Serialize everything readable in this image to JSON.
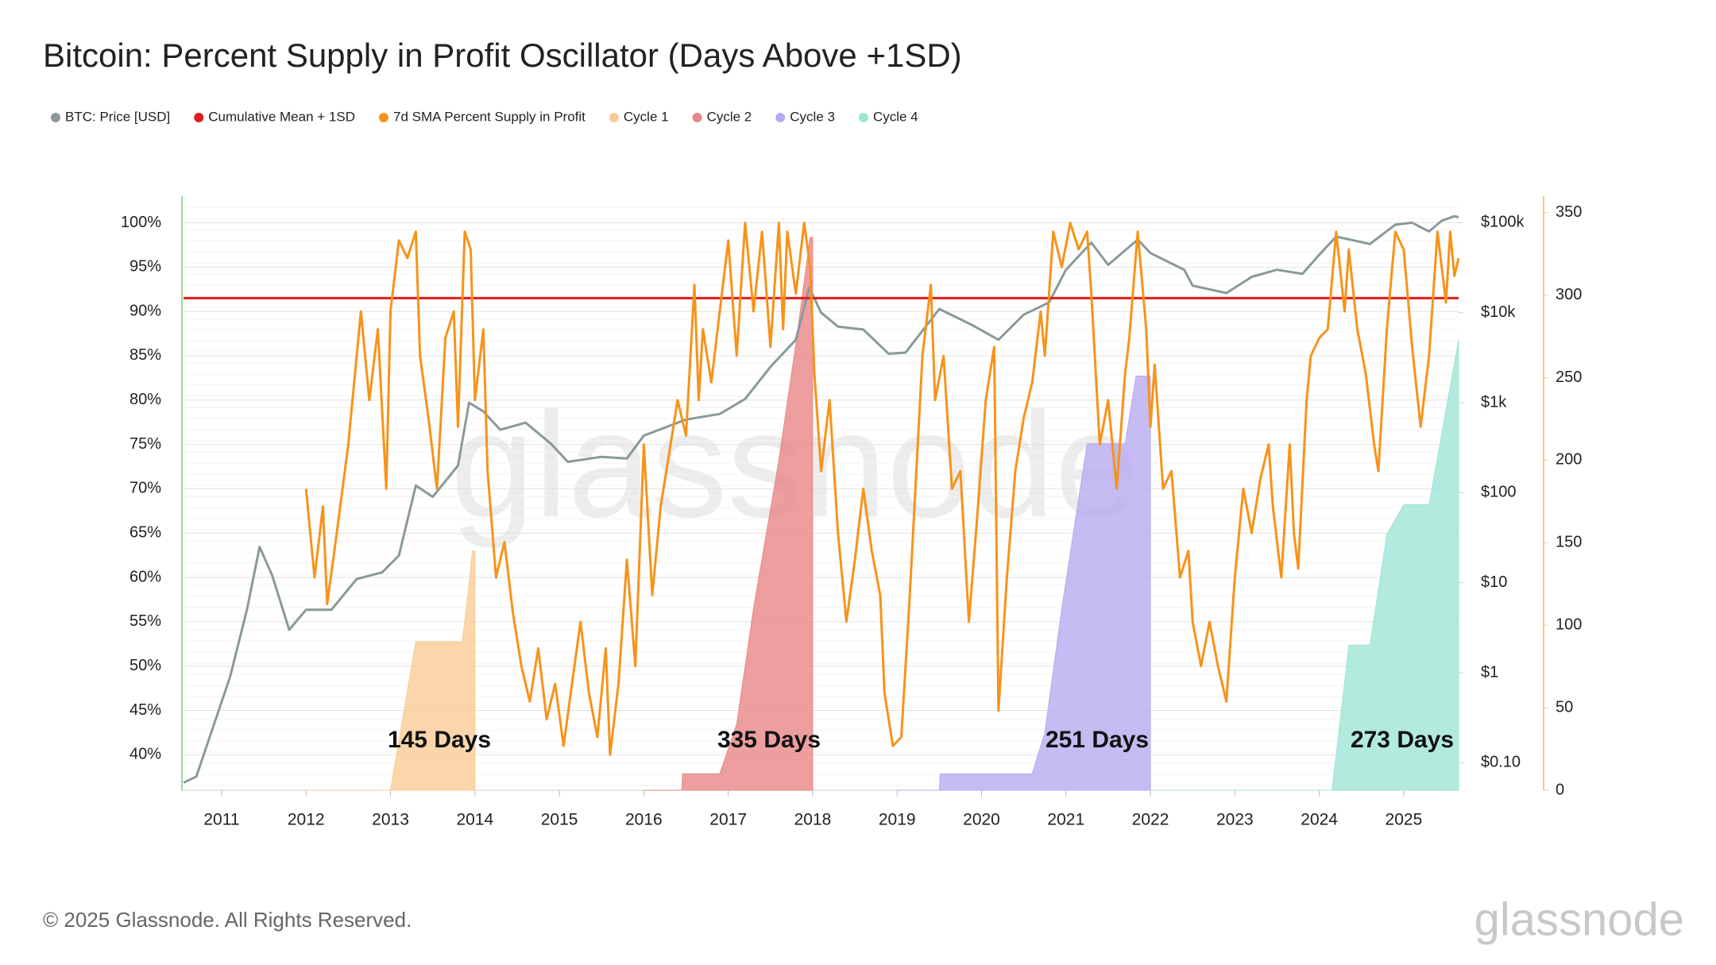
{
  "chart_data": {
    "type": "line",
    "title": "Bitcoin: Percent Supply in Profit Oscillator (Days Above +1SD)",
    "xlim": [
      2010.53,
      2025.65
    ],
    "xticks": [
      2011,
      2012,
      2013,
      2014,
      2015,
      2016,
      2017,
      2018,
      2019,
      2020,
      2021,
      2022,
      2023,
      2024,
      2025
    ],
    "ylim": [
      36,
      103
    ],
    "yticks": [
      {
        "value": 40,
        "label": "40%"
      },
      {
        "value": 45,
        "label": "45%"
      },
      {
        "value": 50,
        "label": "50%"
      },
      {
        "value": 55,
        "label": "55%"
      },
      {
        "value": 60,
        "label": "60%"
      },
      {
        "value": 65,
        "label": "65%"
      },
      {
        "value": 70,
        "label": "70%"
      },
      {
        "value": 75,
        "label": "75%"
      },
      {
        "value": 80,
        "label": "80%"
      },
      {
        "value": 85,
        "label": "85%"
      },
      {
        "value": 90,
        "label": "90%"
      },
      {
        "value": 95,
        "label": "95%"
      },
      {
        "value": 100,
        "label": "100%"
      }
    ],
    "y2lim": [
      0.0494,
      197000
    ],
    "y2log": true,
    "y2ticks": [
      {
        "value": 0.1,
        "label": "$0.10"
      },
      {
        "value": 1,
        "label": "$1"
      },
      {
        "value": 10,
        "label": "$10"
      },
      {
        "value": 100,
        "label": "$100"
      },
      {
        "value": 1000,
        "label": "$1k"
      },
      {
        "value": 10000,
        "label": "$10k"
      },
      {
        "value": 100000,
        "label": "$100k"
      }
    ],
    "y3lim": [
      0,
      360
    ],
    "y3ticks": [
      0,
      50,
      100,
      150,
      200,
      250,
      300,
      350
    ],
    "grid": true,
    "annotations": [
      "145 Days",
      "335 Days",
      "251 Days",
      "273 Days"
    ],
    "watermark": "glassnode",
    "footer": "© 2025 Glassnode. All Rights Reserved.",
    "logo": "glassnode",
    "series": [
      {
        "name": "BTC: Price [USD]",
        "color": "#8a999b",
        "axis": "y2",
        "kind": "line",
        "x": [
          2010.55,
          2010.7,
          2010.9,
          2011.1,
          2011.3,
          2011.45,
          2011.6,
          2011.8,
          2012.0,
          2012.3,
          2012.6,
          2012.9,
          2013.1,
          2013.3,
          2013.5,
          2013.8,
          2013.93,
          2014.1,
          2014.3,
          2014.6,
          2014.9,
          2015.1,
          2015.5,
          2015.8,
          2016.0,
          2016.5,
          2016.9,
          2017.2,
          2017.5,
          2017.8,
          2017.96,
          2018.1,
          2018.3,
          2018.6,
          2018.9,
          2019.1,
          2019.5,
          2019.9,
          2020.2,
          2020.5,
          2020.8,
          2021.0,
          2021.3,
          2021.5,
          2021.85,
          2022.0,
          2022.4,
          2022.5,
          2022.9,
          2023.2,
          2023.5,
          2023.8,
          2024.0,
          2024.2,
          2024.6,
          2024.9,
          2025.1,
          2025.3,
          2025.45,
          2025.6,
          2025.65
        ],
        "values": [
          0.06,
          0.07,
          0.25,
          0.9,
          5,
          25,
          12,
          3,
          5,
          5,
          11,
          13,
          20,
          120,
          90,
          200,
          1000,
          800,
          500,
          600,
          350,
          220,
          250,
          240,
          430,
          650,
          750,
          1100,
          2500,
          5000,
          19000,
          10000,
          7000,
          6500,
          3500,
          3600,
          11000,
          7200,
          5000,
          9500,
          13000,
          30000,
          60000,
          34000,
          65000,
          46000,
          30000,
          20000,
          16500,
          25000,
          30000,
          27000,
          44000,
          70000,
          58000,
          95000,
          100000,
          80000,
          105000,
          118000,
          115000
        ]
      },
      {
        "name": "Cumulative Mean + 1SD",
        "color": "#e01b1b",
        "kind": "line",
        "x": [
          2010.55,
          2025.65
        ],
        "values": [
          91.5,
          91.5
        ]
      },
      {
        "name": "7d SMA Percent Supply in Profit",
        "color": "#f7931a",
        "kind": "line",
        "x": [
          2012.0,
          2012.1,
          2012.2,
          2012.25,
          2012.35,
          2012.5,
          2012.6,
          2012.65,
          2012.75,
          2012.85,
          2012.95,
          2013.0,
          2013.1,
          2013.2,
          2013.3,
          2013.35,
          2013.45,
          2013.55,
          2013.65,
          2013.75,
          2013.8,
          2013.88,
          2013.95,
          2014.0,
          2014.1,
          2014.15,
          2014.25,
          2014.35,
          2014.45,
          2014.55,
          2014.65,
          2014.75,
          2014.85,
          2014.95,
          2015.05,
          2015.15,
          2015.25,
          2015.35,
          2015.45,
          2015.55,
          2015.6,
          2015.7,
          2015.8,
          2015.9,
          2016.0,
          2016.1,
          2016.2,
          2016.3,
          2016.4,
          2016.5,
          2016.6,
          2016.65,
          2016.7,
          2016.8,
          2016.9,
          2017.0,
          2017.1,
          2017.2,
          2017.3,
          2017.4,
          2017.5,
          2017.6,
          2017.65,
          2017.7,
          2017.8,
          2017.9,
          2017.97,
          2018.02,
          2018.1,
          2018.2,
          2018.3,
          2018.4,
          2018.5,
          2018.6,
          2018.7,
          2018.8,
          2018.85,
          2018.95,
          2019.05,
          2019.15,
          2019.3,
          2019.4,
          2019.45,
          2019.55,
          2019.65,
          2019.75,
          2019.85,
          2019.95,
          2020.05,
          2020.15,
          2020.2,
          2020.3,
          2020.4,
          2020.5,
          2020.6,
          2020.7,
          2020.75,
          2020.85,
          2020.95,
          2021.05,
          2021.15,
          2021.25,
          2021.3,
          2021.4,
          2021.5,
          2021.6,
          2021.7,
          2021.75,
          2021.85,
          2021.95,
          2022.0,
          2022.05,
          2022.15,
          2022.25,
          2022.35,
          2022.45,
          2022.5,
          2022.6,
          2022.7,
          2022.8,
          2022.9,
          2023.0,
          2023.1,
          2023.2,
          2023.3,
          2023.4,
          2023.45,
          2023.55,
          2023.65,
          2023.7,
          2023.75,
          2023.85,
          2023.9,
          2024.0,
          2024.1,
          2024.2,
          2024.3,
          2024.35,
          2024.45,
          2024.55,
          2024.65,
          2024.7,
          2024.8,
          2024.9,
          2025.0,
          2025.1,
          2025.2,
          2025.3,
          2025.4,
          2025.5,
          2025.55,
          2025.6,
          2025.65
        ],
        "values": [
          70,
          60,
          68,
          57,
          64,
          75,
          85,
          90,
          80,
          88,
          70,
          90,
          98,
          96,
          99,
          85,
          78,
          70,
          87,
          90,
          77,
          99,
          97,
          80,
          88,
          72,
          60,
          64,
          56,
          50,
          46,
          52,
          44,
          48,
          41,
          48,
          55,
          47,
          42,
          52,
          40,
          48,
          62,
          50,
          75,
          58,
          68,
          74,
          80,
          76,
          93,
          80,
          88,
          82,
          90,
          98,
          85,
          100,
          90,
          99,
          86,
          100,
          88,
          99,
          92,
          100,
          95,
          83,
          72,
          80,
          65,
          55,
          62,
          70,
          63,
          58,
          47,
          41,
          42,
          58,
          85,
          93,
          80,
          85,
          70,
          72,
          55,
          67,
          80,
          86,
          45,
          60,
          72,
          78,
          82,
          90,
          85,
          99,
          95,
          100,
          97,
          99,
          92,
          75,
          80,
          70,
          83,
          87,
          99,
          88,
          77,
          84,
          70,
          72,
          60,
          63,
          55,
          50,
          55,
          50,
          46,
          60,
          70,
          65,
          71,
          75,
          68,
          60,
          75,
          65,
          61,
          80,
          85,
          87,
          88,
          99,
          90,
          97,
          88,
          83,
          75,
          72,
          88,
          99,
          97,
          86,
          77,
          85,
          99,
          91,
          99,
          94,
          96
        ]
      },
      {
        "name": "Cycle 1",
        "color": "#f9cc95",
        "axis": "y3",
        "kind": "area",
        "x": [
          2012.0,
          2013.0,
          2013.1,
          2013.3,
          2013.85,
          2013.92,
          2013.97,
          2014.0
        ],
        "values": [
          0,
          0,
          30,
          90,
          90,
          120,
          145,
          145
        ]
      },
      {
        "name": "Cycle 2",
        "color": "#e88787",
        "axis": "y3",
        "kind": "area",
        "x": [
          2016.0,
          2016.45,
          2016.46,
          2016.9,
          2017.1,
          2017.3,
          2017.6,
          2017.8,
          2017.97,
          2018.0
        ],
        "values": [
          0,
          0,
          10,
          10,
          40,
          110,
          200,
          270,
          335,
          335
        ]
      },
      {
        "name": "Cycle 3",
        "color": "#b9aaf0",
        "axis": "y3",
        "kind": "area",
        "x": [
          2019.0,
          2019.5,
          2019.51,
          2020.6,
          2020.75,
          2020.95,
          2021.25,
          2021.7,
          2021.83,
          2022.0
        ],
        "values": [
          0,
          0,
          10,
          10,
          35,
          110,
          210,
          210,
          251,
          251
        ]
      },
      {
        "name": "Cycle 4",
        "color": "#9fe5d6",
        "axis": "y3",
        "kind": "area",
        "x": [
          2022.0,
          2024.15,
          2024.3,
          2024.35,
          2024.6,
          2024.8,
          2025.0,
          2025.3,
          2025.65
        ],
        "values": [
          0,
          0,
          65,
          88,
          88,
          155,
          173,
          173,
          273
        ]
      }
    ]
  }
}
